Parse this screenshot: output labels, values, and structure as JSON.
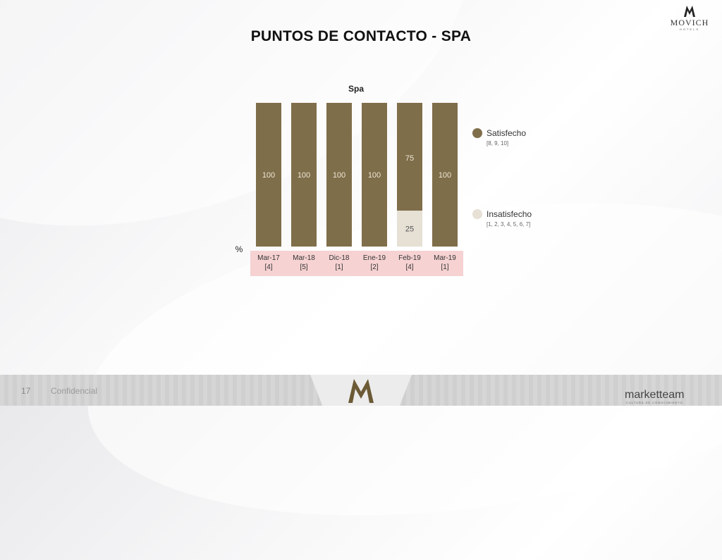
{
  "header": {
    "title": "PUNTOS DE CONTACTO - SPA",
    "brand": "MOVICH",
    "brand_sub": "HOTELS"
  },
  "chart_data": {
    "type": "bar",
    "stacked": true,
    "title": "Spa",
    "ylabel": "%",
    "ylim": [
      0,
      100
    ],
    "grid": false,
    "legend_position": "right",
    "categories": [
      "Mar-17",
      "Mar-18",
      "Dic-18",
      "Ene-19",
      "Feb-19",
      "Mar-19"
    ],
    "sample_sizes": [
      "[4]",
      "[5]",
      "[1]",
      "[2]",
      "[4]",
      "[1]"
    ],
    "series": [
      {
        "name": "Insatisfecho",
        "scale_note": "[1, 2, 3, 4, 5, 6, 7]",
        "color": "#e6e0d5",
        "values": [
          0,
          0,
          0,
          0,
          25,
          0
        ]
      },
      {
        "name": "Satisfecho",
        "scale_note": "[8, 9, 10]",
        "color": "#7f6e4a",
        "values": [
          100,
          100,
          100,
          100,
          75,
          100
        ]
      }
    ],
    "category_band_color": "#f6d2d2"
  },
  "footer": {
    "page_number": "17",
    "confidential": "Confidencial",
    "agency": "marketteam",
    "agency_sub": "CULTURA DE CONOCIMIENTO"
  }
}
